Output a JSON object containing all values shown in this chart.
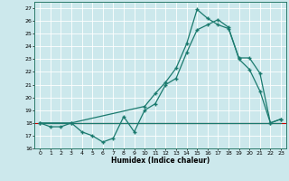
{
  "title": "",
  "xlabel": "Humidex (Indice chaleur)",
  "bg_color": "#cce8ec",
  "grid_color": "#ffffff",
  "line_color": "#1a7a6e",
  "red_line_color": "#cc0000",
  "markersize": 2.5,
  "linewidth": 0.9,
  "xlim": [
    -0.5,
    23.5
  ],
  "ylim": [
    16,
    27.5
  ],
  "yticks": [
    16,
    17,
    18,
    19,
    20,
    21,
    22,
    23,
    24,
    25,
    26,
    27
  ],
  "xticks": [
    0,
    1,
    2,
    3,
    4,
    5,
    6,
    7,
    8,
    9,
    10,
    11,
    12,
    13,
    14,
    15,
    16,
    17,
    18,
    19,
    20,
    21,
    22,
    23
  ],
  "series1_x": [
    0,
    1,
    2,
    3,
    4,
    5,
    6,
    7,
    8,
    9,
    10,
    11,
    12,
    13,
    14,
    15,
    16,
    17,
    18,
    19,
    20,
    21,
    22,
    23
  ],
  "series1_y": [
    18.0,
    17.7,
    17.7,
    18.0,
    17.3,
    17.0,
    16.5,
    16.8,
    18.5,
    17.3,
    19.0,
    19.5,
    21.0,
    21.5,
    23.5,
    25.3,
    25.7,
    26.1,
    25.5,
    23.0,
    22.2,
    20.5,
    18.0,
    18.3
  ],
  "series2_x": [
    0,
    3,
    22,
    23
  ],
  "series2_y": [
    18.0,
    18.0,
    18.0,
    18.0
  ],
  "series3_x": [
    0,
    3,
    10,
    11,
    12,
    13,
    14,
    15,
    16,
    17,
    18,
    19,
    20,
    21,
    22,
    23
  ],
  "series3_y": [
    18.0,
    18.0,
    19.3,
    20.3,
    21.2,
    22.3,
    24.2,
    26.9,
    26.2,
    25.7,
    25.4,
    23.1,
    23.1,
    21.9,
    18.0,
    18.3
  ]
}
